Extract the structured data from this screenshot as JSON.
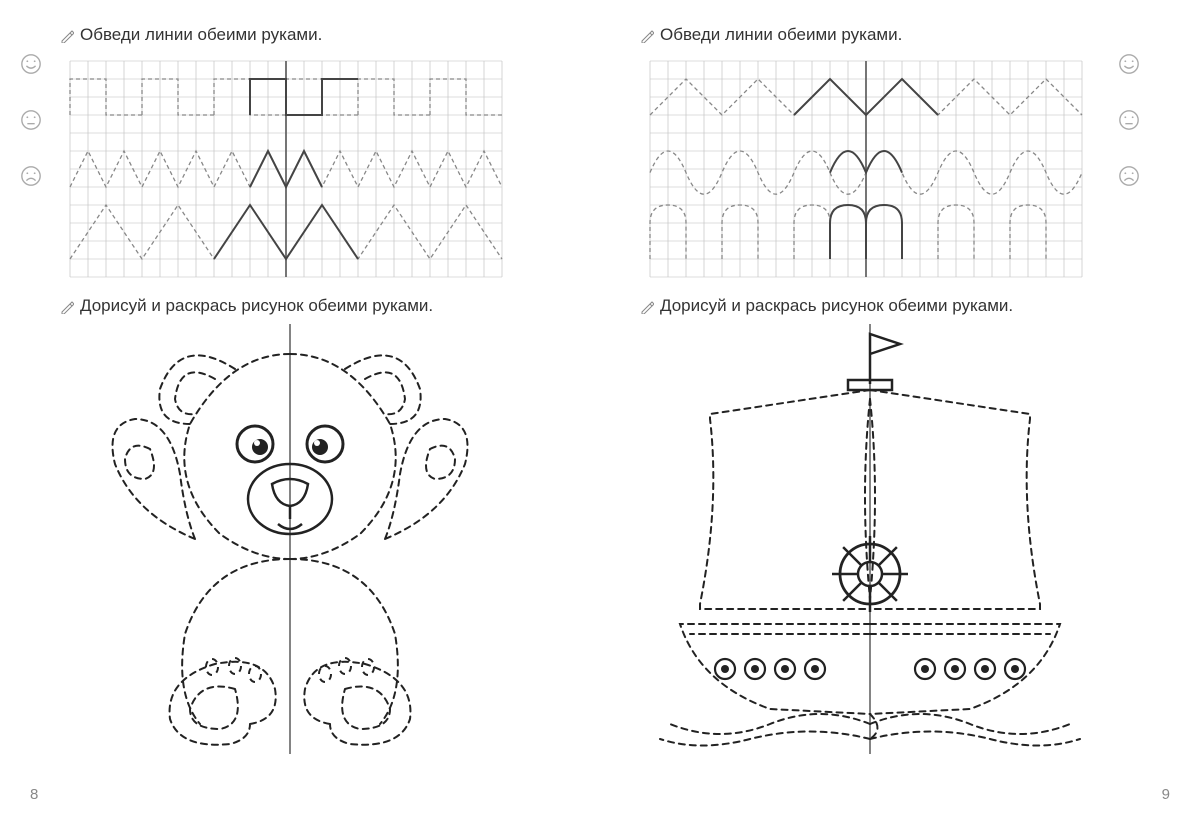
{
  "pages": {
    "left": {
      "number": "8",
      "instruction_top": "Обведи линии обеими руками.",
      "instruction_bottom": "Дорисуй и раскрась рисунок обеими руками.",
      "grid": {
        "cell": 18,
        "cols": 24,
        "rows": 12,
        "stroke": "#bbbbbb",
        "center_stroke": "#666666",
        "dash_stroke": "#888888",
        "solid_stroke": "#444444",
        "row_patterns": [
          {
            "type": "castle",
            "y": 1,
            "amp": 2,
            "period": 4
          },
          {
            "type": "zigzag",
            "y": 5,
            "amp": 2,
            "period": 2
          },
          {
            "type": "tall_zigzag",
            "y": 8,
            "amp": 3,
            "period": 4
          }
        ]
      },
      "drawing": {
        "name": "bear",
        "stroke": "#222222",
        "dash": "6,5"
      }
    },
    "right": {
      "number": "9",
      "instruction_top": "Обведи линии обеими руками.",
      "instruction_bottom": "Дорисуй и раскрась рисунок обеими руками.",
      "grid": {
        "cell": 18,
        "cols": 24,
        "rows": 12,
        "stroke": "#bbbbbb",
        "center_stroke": "#666666",
        "dash_stroke": "#888888",
        "solid_stroke": "#444444",
        "row_patterns": [
          {
            "type": "zigzag",
            "y": 1,
            "amp": 2,
            "period": 4
          },
          {
            "type": "wave",
            "y": 5,
            "amp": 1.2,
            "period": 4
          },
          {
            "type": "bumps",
            "y": 8,
            "amp": 3,
            "period": 4
          }
        ]
      },
      "drawing": {
        "name": "ship",
        "stroke": "#222222",
        "dash": "6,5"
      }
    }
  },
  "faces": [
    "happy",
    "neutral",
    "sad"
  ],
  "colors": {
    "bg": "#ffffff",
    "text": "#333333",
    "grid_line": "#c8c8c8",
    "dashed": "#777777",
    "solid": "#333333"
  }
}
